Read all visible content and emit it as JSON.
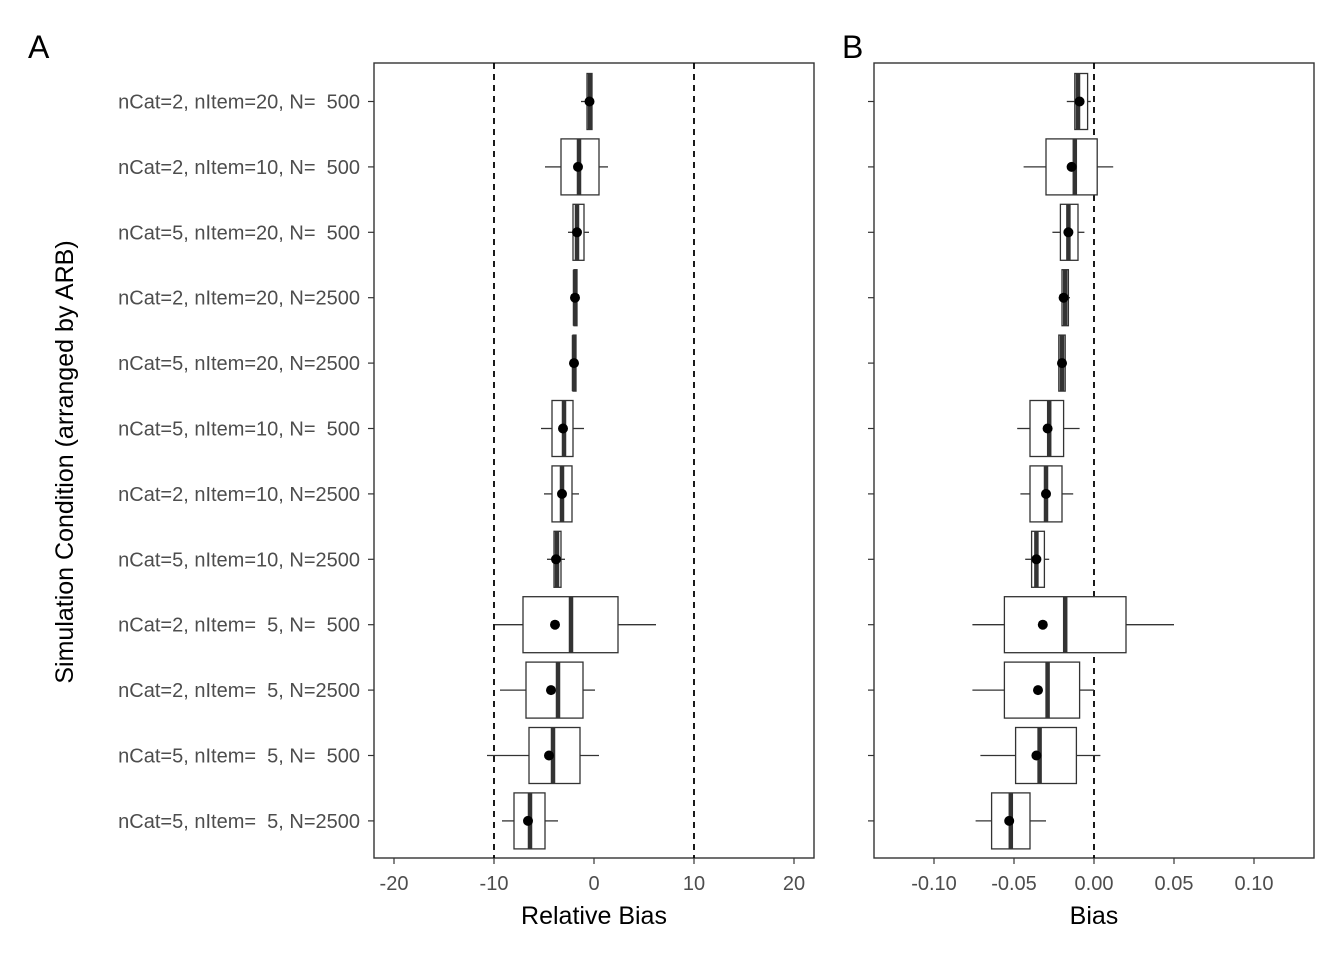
{
  "chart_data": [
    {
      "panel": "A",
      "type": "box",
      "orientation": "horizontal",
      "xlabel": "Relative Bias",
      "ylabel": "Simulation Condition (arranged by ARB)",
      "xlim": [
        -22,
        22
      ],
      "xticks": [
        -20,
        -10,
        0,
        10,
        20
      ],
      "xtick_labels": [
        "-20",
        "-10",
        "0",
        "10",
        "20"
      ],
      "ref_lines": [
        -10,
        10
      ],
      "categories": [
        "nCat=2, nItem=20, N=  500",
        "nCat=2, nItem=10, N=  500",
        "nCat=5, nItem=20, N=  500",
        "nCat=2, nItem=20, N=2500",
        "nCat=5, nItem=20, N=2500",
        "nCat=5, nItem=10, N=  500",
        "nCat=2, nItem=10, N=2500",
        "nCat=5, nItem=10, N=2500",
        "nCat=2, nItem=  5, N=  500",
        "nCat=2, nItem=  5, N=2500",
        "nCat=5, nItem=  5, N=  500",
        "nCat=5, nItem=  5, N=2500"
      ],
      "boxes": [
        {
          "whisker_low": -1.3,
          "q1": -0.7,
          "median": -0.4,
          "q3": -0.2,
          "whisker_high": 0.0,
          "mean": -0.45
        },
        {
          "whisker_low": -4.9,
          "q1": -3.3,
          "median": -1.5,
          "q3": 0.5,
          "whisker_high": 1.4,
          "mean": -1.6
        },
        {
          "whisker_low": -2.6,
          "q1": -2.1,
          "median": -1.7,
          "q3": -1.0,
          "whisker_high": -0.5,
          "mean": -1.7
        },
        {
          "whisker_low": -2.2,
          "q1": -2.0,
          "median": -1.9,
          "q3": -1.7,
          "whisker_high": -1.5,
          "mean": -1.9
        },
        {
          "whisker_low": -2.3,
          "q1": -2.1,
          "median": -2.0,
          "q3": -1.8,
          "whisker_high": -1.6,
          "mean": -2.0
        },
        {
          "whisker_low": -5.3,
          "q1": -4.2,
          "median": -3.0,
          "q3": -2.1,
          "whisker_high": -1.0,
          "mean": -3.1
        },
        {
          "whisker_low": -5.0,
          "q1": -4.2,
          "median": -3.2,
          "q3": -2.2,
          "whisker_high": -1.5,
          "mean": -3.2
        },
        {
          "whisker_low": -4.7,
          "q1": -4.0,
          "median": -3.7,
          "q3": -3.3,
          "whisker_high": -2.9,
          "mean": -3.8
        },
        {
          "whisker_low": -9.9,
          "q1": -7.1,
          "median": -2.3,
          "q3": 2.4,
          "whisker_high": 6.2,
          "mean": -3.9
        },
        {
          "whisker_low": -9.4,
          "q1": -6.8,
          "median": -3.6,
          "q3": -1.1,
          "whisker_high": 0.1,
          "mean": -4.3
        },
        {
          "whisker_low": -10.7,
          "q1": -6.5,
          "median": -4.1,
          "q3": -1.4,
          "whisker_high": 0.5,
          "mean": -4.5
        },
        {
          "whisker_low": -9.2,
          "q1": -8.0,
          "median": -6.4,
          "q3": -4.9,
          "whisker_high": -3.6,
          "mean": -6.6
        }
      ]
    },
    {
      "panel": "B",
      "type": "box",
      "orientation": "horizontal",
      "xlabel": "Bias",
      "ylabel": "",
      "xlim": [
        -0.1375,
        0.1375
      ],
      "xticks": [
        -0.1,
        -0.05,
        0.0,
        0.05,
        0.1
      ],
      "xtick_labels": [
        "-0.10",
        "-0.05",
        "0.00",
        "0.05",
        "0.10"
      ],
      "ref_lines": [
        0
      ],
      "boxes": [
        {
          "whisker_low": -0.017,
          "q1": -0.012,
          "median": -0.01,
          "q3": -0.004,
          "whisker_high": -0.002,
          "mean": -0.009
        },
        {
          "whisker_low": -0.044,
          "q1": -0.03,
          "median": -0.012,
          "q3": 0.002,
          "whisker_high": 0.012,
          "mean": -0.014
        },
        {
          "whisker_low": -0.026,
          "q1": -0.021,
          "median": -0.016,
          "q3": -0.01,
          "whisker_high": -0.006,
          "mean": -0.016
        },
        {
          "whisker_low": -0.021,
          "q1": -0.02,
          "median": -0.018,
          "q3": -0.016,
          "whisker_high": -0.015,
          "mean": -0.019
        },
        {
          "whisker_low": -0.022,
          "q1": -0.022,
          "median": -0.02,
          "q3": -0.018,
          "whisker_high": -0.017,
          "mean": -0.02
        },
        {
          "whisker_low": -0.048,
          "q1": -0.04,
          "median": -0.028,
          "q3": -0.019,
          "whisker_high": -0.009,
          "mean": -0.029
        },
        {
          "whisker_low": -0.046,
          "q1": -0.04,
          "median": -0.03,
          "q3": -0.02,
          "whisker_high": -0.013,
          "mean": -0.03
        },
        {
          "whisker_low": -0.043,
          "q1": -0.039,
          "median": -0.036,
          "q3": -0.031,
          "whisker_high": -0.028,
          "mean": -0.036
        },
        {
          "whisker_low": -0.076,
          "q1": -0.056,
          "median": -0.018,
          "q3": 0.02,
          "whisker_high": 0.05,
          "mean": -0.032
        },
        {
          "whisker_low": -0.076,
          "q1": -0.056,
          "median": -0.029,
          "q3": -0.009,
          "whisker_high": 0.0,
          "mean": -0.035
        },
        {
          "whisker_low": -0.071,
          "q1": -0.049,
          "median": -0.034,
          "q3": -0.011,
          "whisker_high": 0.004,
          "mean": -0.036
        },
        {
          "whisker_low": -0.074,
          "q1": -0.064,
          "median": -0.052,
          "q3": -0.04,
          "whisker_high": -0.03,
          "mean": -0.053
        }
      ]
    }
  ],
  "panel_letters": [
    "A",
    "B"
  ]
}
